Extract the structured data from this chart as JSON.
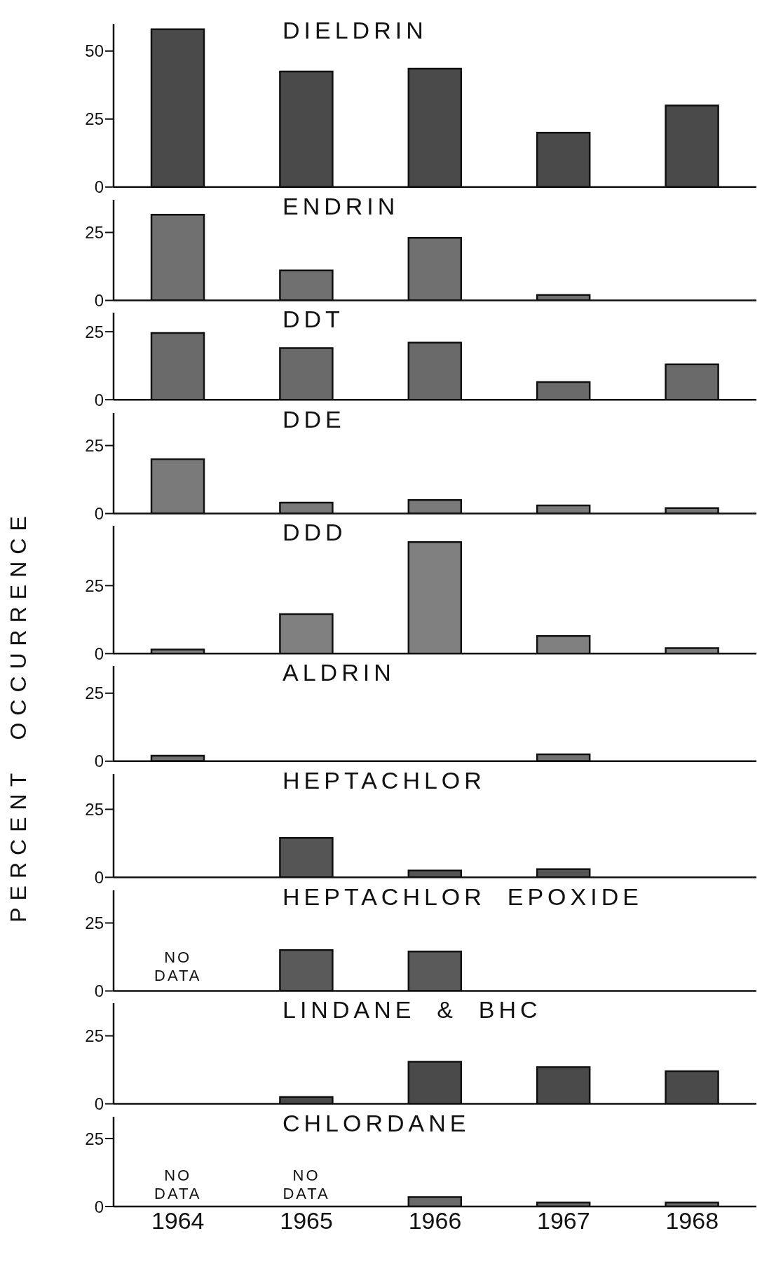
{
  "chart_data": [
    {
      "type": "bar",
      "title": "DIELDRIN",
      "categories": [
        "1964",
        "1965",
        "1966",
        "1967",
        "1968"
      ],
      "values": [
        58,
        42.5,
        43.5,
        20,
        30
      ],
      "color": "#4a4a4a",
      "ylim": [
        0,
        60
      ],
      "yticks": [
        0,
        25,
        50
      ],
      "tick_labels": "y"
    },
    {
      "type": "bar",
      "title": "ENDRIN",
      "categories": [
        "1964",
        "1965",
        "1966",
        "1967",
        "1968"
      ],
      "values": [
        31.5,
        11,
        23,
        2,
        0
      ],
      "color": "#707070",
      "ylim": [
        0,
        37
      ],
      "yticks": [
        0,
        25
      ],
      "tick_labels": "y"
    },
    {
      "type": "bar",
      "title": "DDT",
      "categories": [
        "1964",
        "1965",
        "1966",
        "1967",
        "1968"
      ],
      "values": [
        24.5,
        19,
        21,
        6.5,
        13
      ],
      "color": "#6a6a6a",
      "ylim": [
        0,
        32
      ],
      "yticks": [
        0,
        25
      ],
      "tick_labels": "y"
    },
    {
      "type": "bar",
      "title": "DDE",
      "categories": [
        "1964",
        "1965",
        "1966",
        "1967",
        "1968"
      ],
      "values": [
        20,
        4,
        5,
        3,
        2
      ],
      "color": "#7a7a7a",
      "ylim": [
        0,
        37
      ],
      "yticks": [
        0,
        25
      ],
      "tick_labels": "y"
    },
    {
      "type": "bar",
      "title": "DDD",
      "categories": [
        "1964",
        "1965",
        "1966",
        "1967",
        "1968"
      ],
      "values": [
        1.5,
        14.5,
        41,
        6.5,
        2
      ],
      "color": "#808080",
      "ylim": [
        0,
        47
      ],
      "yticks": [
        0,
        25
      ],
      "tick_labels": "y"
    },
    {
      "type": "bar",
      "title": "ALDRIN",
      "ylabel": "PERCENT  OCCURRENCE",
      "categories": [
        "1964",
        "1965",
        "1966",
        "1967",
        "1968"
      ],
      "values": [
        2,
        0,
        0,
        2.5,
        0
      ],
      "color": "#707070",
      "ylim": [
        0,
        35
      ],
      "yticks": [
        0,
        25
      ],
      "tick_labels": "y"
    },
    {
      "type": "bar",
      "title": "HEPTACHLOR",
      "categories": [
        "1964",
        "1965",
        "1966",
        "1967",
        "1968"
      ],
      "values": [
        0,
        14.5,
        2.5,
        3,
        0
      ],
      "color": "#555555",
      "ylim": [
        0,
        38
      ],
      "yticks": [
        0,
        25
      ],
      "tick_labels": "y"
    },
    {
      "type": "bar",
      "title": "HEPTACHLOR  EPOXIDE",
      "categories": [
        "1964",
        "1965",
        "1966",
        "1967",
        "1968"
      ],
      "values": [
        null,
        15,
        14.5,
        0,
        0
      ],
      "color": "#5a5a5a",
      "ylim": [
        0,
        37
      ],
      "yticks": [
        0,
        25
      ],
      "tick_labels": "y",
      "annotations": [
        "NO DATA"
      ]
    },
    {
      "type": "bar",
      "title": "LINDANE  &  BHC",
      "categories": [
        "1964",
        "1965",
        "1966",
        "1967",
        "1968"
      ],
      "values": [
        0,
        2.5,
        15.5,
        13.5,
        12
      ],
      "color": "#4a4a4a",
      "ylim": [
        0,
        37
      ],
      "yticks": [
        0,
        25
      ],
      "tick_labels": "y"
    },
    {
      "type": "bar",
      "title": "CHLORDANE",
      "categories": [
        "1964",
        "1965",
        "1966",
        "1967",
        "1968"
      ],
      "values": [
        null,
        null,
        3.5,
        1.5,
        1.5
      ],
      "color": "#6a6a6a",
      "ylim": [
        0,
        33
      ],
      "yticks": [
        0,
        25
      ],
      "annotations": [
        "NO DATA",
        "NO DATA"
      ]
    }
  ]
}
